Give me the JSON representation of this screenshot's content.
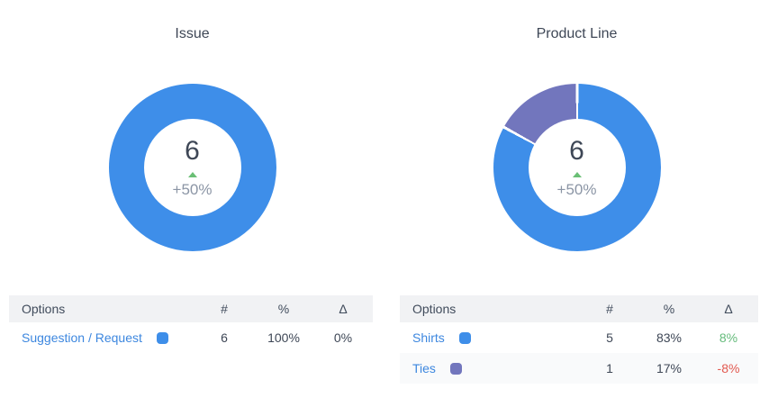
{
  "colors": {
    "blue": "#3E8EE9",
    "purple": "#7276BD",
    "link_blue": "#3D87DF",
    "green": "#65BB7B",
    "red": "#E25950",
    "text_dark": "#3E4756",
    "text_muted": "#8B95A5",
    "header_bg": "#F1F2F4"
  },
  "charts": [
    {
      "title": "Issue",
      "center": {
        "value": "6",
        "delta": "+50%",
        "trend": "up"
      },
      "slices": [
        {
          "label": "Suggestion / Request",
          "percent": 100,
          "color": "#3E8EE9"
        }
      ],
      "table": {
        "headers": {
          "options": "Options",
          "count": "#",
          "percent": "%",
          "delta": "Δ"
        },
        "rows": [
          {
            "label": "Suggestion / Request",
            "swatch": "#3E8EE9",
            "count": "6",
            "percent": "100%",
            "delta": "0%",
            "delta_color": "#3E4756"
          }
        ]
      }
    },
    {
      "title": "Product Line",
      "center": {
        "value": "6",
        "delta": "+50%",
        "trend": "up"
      },
      "slices": [
        {
          "label": "Shirts",
          "percent": 83,
          "color": "#3E8EE9"
        },
        {
          "label": "Ties",
          "percent": 17,
          "color": "#7276BD"
        }
      ],
      "table": {
        "headers": {
          "options": "Options",
          "count": "#",
          "percent": "%",
          "delta": "Δ"
        },
        "rows": [
          {
            "label": "Shirts",
            "swatch": "#3E8EE9",
            "count": "5",
            "percent": "83%",
            "delta": "8%",
            "delta_color": "#65BB7B"
          },
          {
            "label": "Ties",
            "swatch": "#7276BD",
            "count": "1",
            "percent": "17%",
            "delta": "-8%",
            "delta_color": "#E25950"
          }
        ]
      }
    }
  ],
  "chart_data": [
    {
      "type": "pie",
      "title": "Issue",
      "labels": [
        "Suggestion / Request"
      ],
      "values": [
        6
      ],
      "percentages": [
        100
      ],
      "deltas": [
        "0%"
      ],
      "colors": [
        "#3E8EE9"
      ],
      "center_total": "6",
      "center_delta": "+50%",
      "donut": true,
      "legend_position": "table-below"
    },
    {
      "type": "pie",
      "title": "Product Line",
      "labels": [
        "Shirts",
        "Ties"
      ],
      "values": [
        5,
        1
      ],
      "percentages": [
        83,
        17
      ],
      "deltas": [
        "8%",
        "-8%"
      ],
      "colors": [
        "#3E8EE9",
        "#7276BD"
      ],
      "center_total": "6",
      "center_delta": "+50%",
      "donut": true,
      "legend_position": "table-below"
    }
  ]
}
